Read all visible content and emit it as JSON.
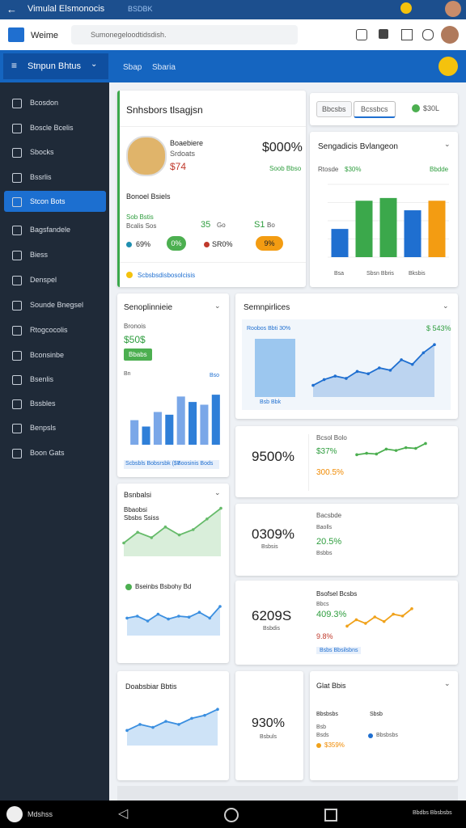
{
  "window": {
    "title": "Vimulal Elsmonocis",
    "tab": "BSDBK"
  },
  "appbar": {
    "brand": "Weime",
    "search": "Sumonegeloodtidsdish."
  },
  "navbar": {
    "menu": "Stnpun Bhtus",
    "links": [
      "Sbap",
      "Sbaria"
    ]
  },
  "sidebar": {
    "items": [
      "Bcosdon",
      "Boscle Bcelis",
      "Sbocks",
      "Bssrlis",
      "Stcon Bots",
      "Bagsfandele",
      "Biess",
      "Denspel",
      "Sounde Bnegsel",
      "Rtogcocolis",
      "Bconsinbe",
      "Bsenlis",
      "Bssbles",
      "Benpsls",
      "Boon Gats"
    ],
    "active": 4
  },
  "profile": {
    "title": "Snhsbors tlsagjsn",
    "name": "Boaebiere",
    "role": "Srdoats",
    "amount": "$74",
    "big": "$000%",
    "big_note": "Soob Bbso",
    "section": "Bonoel Bsiels",
    "stats": [
      "Sob Bstis",
      "Bcalis Sos",
      "35",
      "Go",
      "S1",
      "Bo"
    ],
    "pills": [
      "69%",
      "0%",
      "SR0%",
      "9%"
    ],
    "footer": "Scbsbsdisbosolcisis"
  },
  "actions": {
    "buttons": [
      "Bbcsbs",
      "Bcssbcs"
    ],
    "badge": "$30L"
  },
  "groups": {
    "title": "Sengadicis Bvlangeon",
    "label": "Rtosde",
    "value": "$30%",
    "note": "Bbdde",
    "legend": [
      "Bsa",
      "Sbsn Bbris",
      "Bksbis"
    ],
    "chart": {
      "type": "bar",
      "ylim": [
        0,
        160
      ],
      "yticks": [
        0,
        40,
        80,
        120,
        160
      ],
      "colors": [
        "#1f6fd0",
        "#3ba84b",
        "#3ba84b",
        "#1f6fd0",
        "#f39c12"
      ],
      "values": [
        62,
        124,
        130,
        103,
        124
      ]
    }
  },
  "spend": {
    "title": "Senoplinnieie",
    "label": "Bronois",
    "value": "$50$",
    "pill": "Bbabs",
    "left": "Bn",
    "right": "Bso",
    "footer": [
      "Scbsbls Bobsrsbk ($7",
      "Boosinis Bods"
    ],
    "chart": {
      "type": "bar",
      "ylim": [
        0,
        80
      ],
      "colors": [
        "#7aa7e8",
        "#2f7fd8"
      ],
      "values": [
        27,
        20,
        36,
        33,
        53,
        47,
        44,
        55
      ]
    }
  },
  "trend": {
    "title": "Semnpirlices",
    "label": "Roobos Bbti 30%",
    "value": "$ 543%",
    "footer": "Bsb Bbk",
    "chart": {
      "type": "line",
      "area": true,
      "color": "#1f6fd0",
      "ylim": [
        0,
        50
      ],
      "values": [
        10,
        15,
        18,
        16,
        22,
        20,
        25,
        23,
        32,
        28,
        38,
        45
      ]
    }
  },
  "kpi1": {
    "big": "9500%",
    "label": "Bcsol Bolo",
    "up": "$37%",
    "down": "300.5%",
    "chart": {
      "type": "line",
      "color": "#4caf50",
      "ylim": [
        0,
        30
      ],
      "values": [
        10,
        12,
        11,
        18,
        16,
        20,
        19,
        26
      ]
    }
  },
  "kpi2": {
    "big": "0309%",
    "sub": "Bsbsis",
    "label": "Bacsbde",
    "note": "Baolls",
    "value": "20.5%",
    "foot": "Bsbbs"
  },
  "kpi3": {
    "big": "6209S",
    "sub": "Bsbdis",
    "label": "Bsofsel Bcsbs",
    "note": "Bbcs",
    "up": "409.3%",
    "down": "9.8%",
    "foot": "Bsbs Bbsilsbns",
    "chart": {
      "type": "line",
      "color": "#f0a21b",
      "ylim": [
        0,
        30
      ],
      "values": [
        5,
        12,
        8,
        15,
        10,
        18,
        16,
        24
      ]
    }
  },
  "growth": {
    "title": "Bsnbalsi",
    "label": "Bbaobsi",
    "sub": "Sbsbs Ssiss",
    "legend": "Bseinbs Bsbohy Bd",
    "chart": {
      "type": "line",
      "area": true,
      "color": "#66bb6a",
      "ylim": [
        0,
        40
      ],
      "values": [
        10,
        18,
        14,
        22,
        16,
        20,
        28,
        36
      ]
    },
    "chart2": {
      "type": "line",
      "area": true,
      "color": "#3b8fe0",
      "ylim": [
        0,
        40
      ],
      "values": [
        18,
        20,
        15,
        22,
        17,
        20,
        19,
        24,
        18,
        30
      ]
    }
  },
  "usage": {
    "title": "Doabsbiar Bbtis",
    "chart": {
      "type": "line",
      "area": true,
      "color": "#3b8fe0",
      "ylim": [
        0,
        30
      ],
      "values": [
        10,
        14,
        12,
        16,
        14,
        18,
        20,
        24
      ]
    }
  },
  "kpi4": {
    "big": "930%",
    "sub": "Bsbuls"
  },
  "list": {
    "title": "Glat Bbis",
    "head": [
      "Bbsbsbs",
      "Sbsb"
    ],
    "rows": [
      "Bsb",
      "Bbsbsbs",
      "Bsds",
      "$359%"
    ]
  },
  "bottombar": {
    "left": "Mdshss",
    "right": "Bbdbs Bbsbsbs"
  }
}
